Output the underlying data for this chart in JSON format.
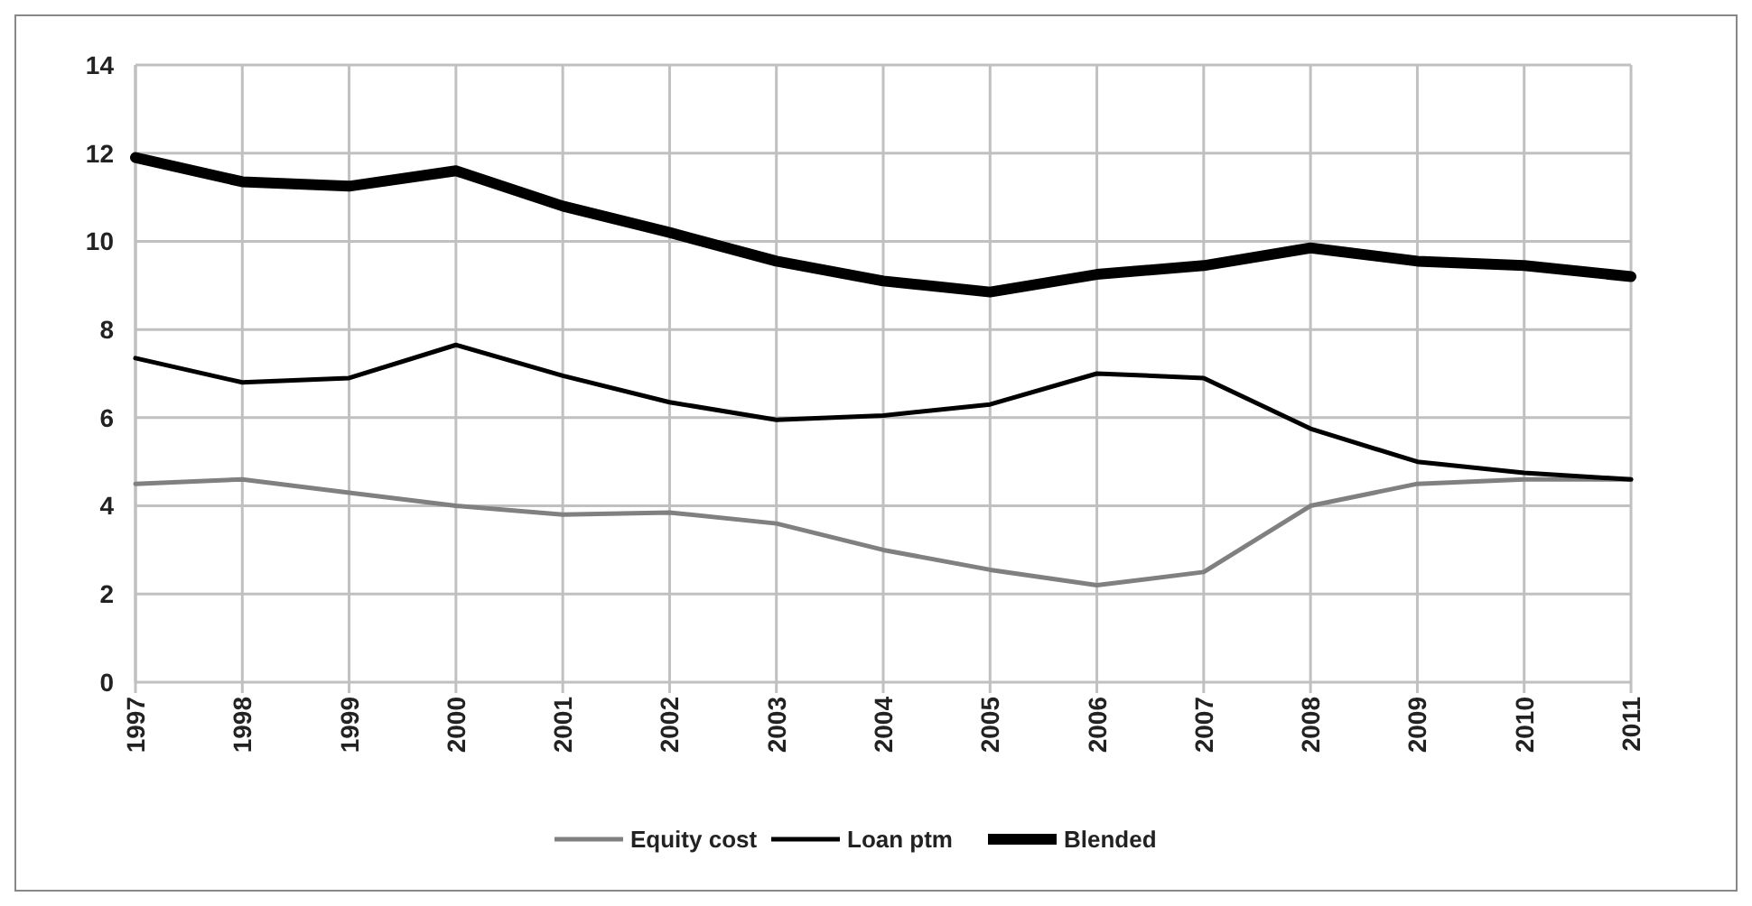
{
  "chart_data": {
    "type": "line",
    "categories": [
      "1997",
      "1998",
      "1999",
      "2000",
      "2001",
      "2002",
      "2003",
      "2004",
      "2005",
      "2006",
      "2007",
      "2008",
      "2009",
      "2010",
      "2011"
    ],
    "series": [
      {
        "name": "Equity cost",
        "color": "#808080",
        "values": [
          4.5,
          4.6,
          4.3,
          4.0,
          3.8,
          3.85,
          3.6,
          3.0,
          2.55,
          2.2,
          2.5,
          4.0,
          4.5,
          4.6,
          4.6
        ]
      },
      {
        "name": "Loan ptm",
        "color": "#000000",
        "values": [
          7.35,
          6.8,
          6.9,
          7.65,
          6.95,
          6.35,
          5.95,
          6.05,
          6.3,
          7.0,
          6.9,
          5.75,
          5.0,
          4.75,
          4.6
        ]
      },
      {
        "name": "Blended",
        "color": "#000000",
        "values": [
          11.9,
          11.35,
          11.25,
          11.6,
          10.8,
          10.2,
          9.55,
          9.1,
          8.85,
          9.25,
          9.45,
          9.85,
          9.55,
          9.45,
          9.2
        ]
      }
    ],
    "ylim": [
      0,
      14
    ],
    "yticks": [
      0,
      2,
      4,
      6,
      8,
      10,
      12,
      14
    ],
    "grid": true,
    "legend": "bottom",
    "marker": "none",
    "line_style": "solid"
  }
}
